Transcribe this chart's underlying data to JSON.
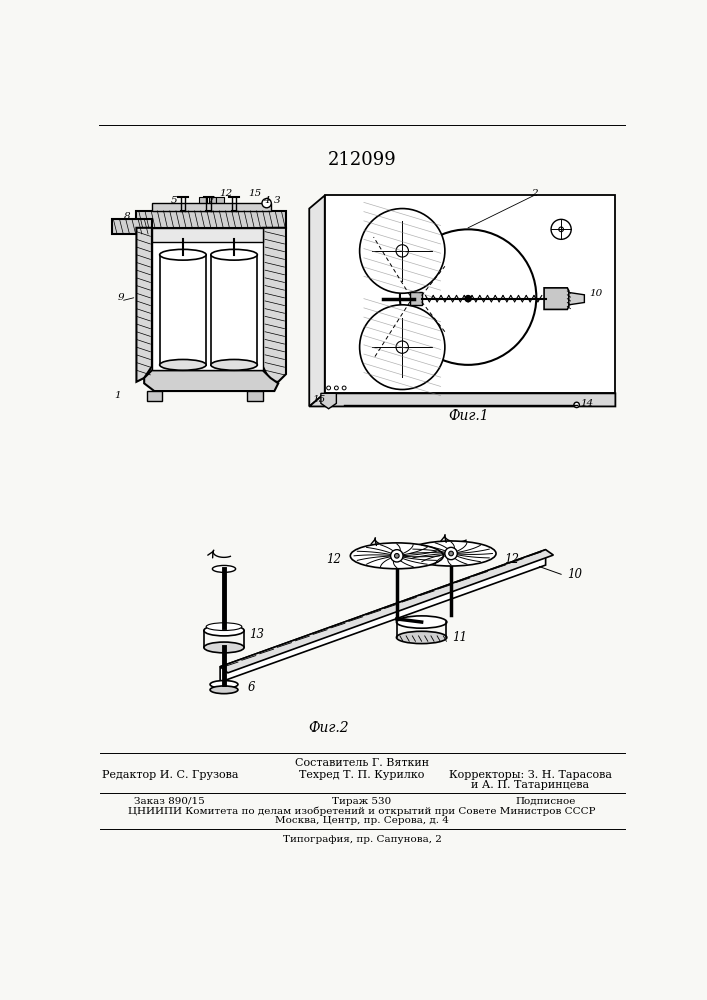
{
  "patent_number": "212099",
  "background_color": "#f8f8f5",
  "fig1_label": "Фиг.1",
  "fig2_label": "Фиг.2",
  "footer_line1": "Составитель Г. Вяткин",
  "footer_editor": "Редактор И. С. Грузова",
  "footer_tech": "Техред Т. П. Курилко",
  "footer_corr1": "Корректоры: З. Н. Тарасова",
  "footer_corr2": "и А. П. Татаринцева",
  "footer_order": "Заказ 890/15",
  "footer_tirazh": "Тираж 530",
  "footer_podp": "Подписное",
  "footer_cniip": "ЦНИИПИ Комитета по делам изобретений и открытий при Совете Министров СССР",
  "footer_moscow": "Москва, Центр, пр. Серова, д. 4",
  "footer_typo": "Типография, пр. Сапунова, 2"
}
